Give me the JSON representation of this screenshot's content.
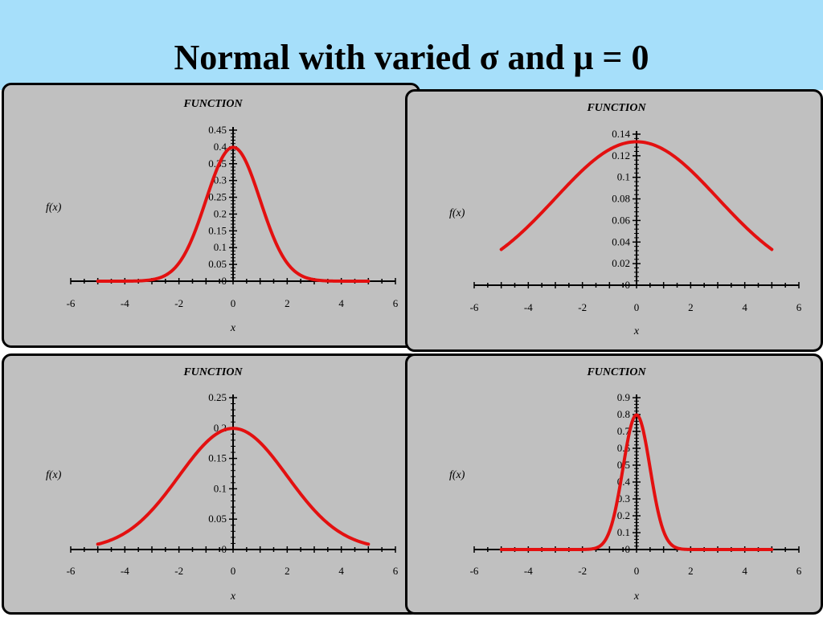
{
  "page": {
    "title": "Normal with varied σ and μ = 0",
    "banner_color": "#a6dffa",
    "panel_color": "#c0c0c0",
    "curve_color": "#e31010"
  },
  "chart_data": [
    {
      "type": "line",
      "title": "FUNCTION",
      "xlabel": "x",
      "ylabel": "f(x)",
      "xlim": [
        -6,
        6
      ],
      "ylim": [
        0,
        0.45
      ],
      "xticks": [
        -6,
        -4,
        -2,
        0,
        2,
        4,
        6
      ],
      "yticks": [
        0,
        0.05,
        0.1,
        0.15,
        0.2,
        0.25,
        0.3,
        0.35,
        0.4,
        0.45
      ],
      "ytick_labels": [
        "0",
        "0.05",
        "0.1",
        "0.15",
        "0.2",
        "0.25",
        "0.3",
        "0.35",
        "0.4",
        "0.45"
      ],
      "series": [
        {
          "mu": 0,
          "sigma": 1,
          "x": [
            -5,
            -4,
            -3,
            -2.5,
            -2,
            -1.5,
            -1,
            -0.5,
            0,
            0.5,
            1,
            1.5,
            2,
            2.5,
            3,
            4,
            5
          ],
          "y": [
            0.0,
            0.0001,
            0.0044,
            0.0175,
            0.054,
            0.1295,
            0.242,
            0.3521,
            0.3989,
            0.3521,
            0.242,
            0.1295,
            0.054,
            0.0175,
            0.0044,
            0.0001,
            0.0
          ]
        }
      ]
    },
    {
      "type": "line",
      "title": "FUNCTION",
      "xlabel": "x",
      "ylabel": "f(x)",
      "xlim": [
        -6,
        6
      ],
      "ylim": [
        0,
        0.14
      ],
      "xticks": [
        -6,
        -4,
        -2,
        0,
        2,
        4,
        6
      ],
      "yticks": [
        0,
        0.02,
        0.04,
        0.06,
        0.08,
        0.1,
        0.12,
        0.14
      ],
      "ytick_labels": [
        "0",
        "0.02",
        "0.04",
        "0.06",
        "0.08",
        "0.1",
        "0.12",
        "0.14"
      ],
      "series": [
        {
          "mu": 0,
          "sigma": 3,
          "x": [
            -5,
            -4,
            -3,
            -2,
            -1,
            0,
            1,
            2,
            3,
            4,
            5
          ],
          "y": [
            0.0332,
            0.0547,
            0.0807,
            0.1065,
            0.1258,
            0.133,
            0.1258,
            0.1065,
            0.0807,
            0.0547,
            0.0332
          ]
        }
      ]
    },
    {
      "type": "line",
      "title": "FUNCTION",
      "xlabel": "x",
      "ylabel": "f(x)",
      "xlim": [
        -6,
        6
      ],
      "ylim": [
        0,
        0.25
      ],
      "xticks": [
        -6,
        -4,
        -2,
        0,
        2,
        4,
        6
      ],
      "yticks": [
        0,
        0.05,
        0.1,
        0.15,
        0.2,
        0.25
      ],
      "ytick_labels": [
        "0",
        "0.05",
        "0.1",
        "0.15",
        "0.2",
        "0.25"
      ],
      "series": [
        {
          "mu": 0,
          "sigma": 2,
          "x": [
            -5,
            -4,
            -3,
            -2,
            -1,
            0,
            1,
            2,
            3,
            4,
            5
          ],
          "y": [
            0.0088,
            0.027,
            0.0648,
            0.121,
            0.176,
            0.1995,
            0.176,
            0.121,
            0.0648,
            0.027,
            0.0088
          ]
        }
      ]
    },
    {
      "type": "line",
      "title": "FUNCTION",
      "xlabel": "x",
      "ylabel": "f(x)",
      "xlim": [
        -6,
        6
      ],
      "ylim": [
        0,
        0.9
      ],
      "xticks": [
        -6,
        -4,
        -2,
        0,
        2,
        4,
        6
      ],
      "yticks": [
        0,
        0.1,
        0.2,
        0.3,
        0.4,
        0.5,
        0.6,
        0.7,
        0.8,
        0.9
      ],
      "ytick_labels": [
        "0",
        "0.1",
        "0.2",
        "0.3",
        "0.4",
        "0.5",
        "0.6",
        "0.7",
        "0.8",
        "0.9"
      ],
      "series": [
        {
          "mu": 0,
          "sigma": 0.5,
          "x": [
            -5,
            -2,
            -1.5,
            -1.25,
            -1,
            -0.75,
            -0.5,
            -0.25,
            0,
            0.25,
            0.5,
            0.75,
            1,
            1.25,
            1.5,
            2,
            5
          ],
          "y": [
            0.0,
            0.0003,
            0.0089,
            0.035,
            0.108,
            0.259,
            0.484,
            0.704,
            0.798,
            0.704,
            0.484,
            0.259,
            0.108,
            0.035,
            0.0089,
            0.0003,
            0.0
          ]
        }
      ]
    }
  ]
}
